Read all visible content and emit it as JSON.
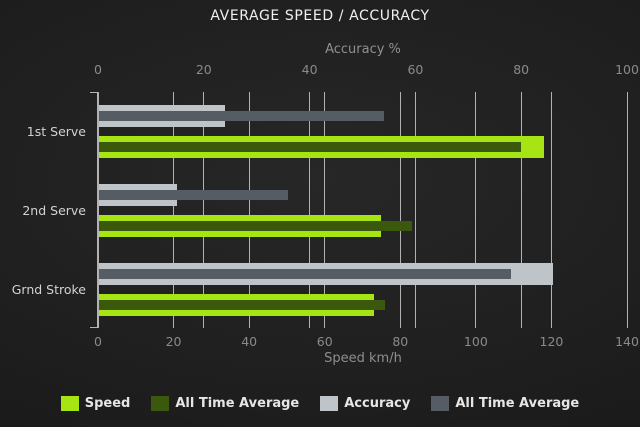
{
  "title": "AVERAGE SPEED / ACCURACY",
  "axes": {
    "top": {
      "label": "Accuracy %",
      "ticks": [
        "0",
        "20",
        "40",
        "60",
        "80",
        "100"
      ]
    },
    "bottom": {
      "label": "Speed km/h",
      "ticks": [
        "0",
        "20",
        "40",
        "60",
        "80",
        "100",
        "120",
        "140"
      ]
    }
  },
  "chart_data": {
    "type": "bar",
    "orientation": "horizontal",
    "title": "AVERAGE SPEED / ACCURACY",
    "categories": [
      "1st Serve",
      "2nd Serve",
      "Grnd Stroke"
    ],
    "top_axis": {
      "label": "Accuracy %",
      "range": [
        0,
        100
      ],
      "ticks": [
        0,
        20,
        40,
        60,
        80,
        100
      ]
    },
    "bottom_axis": {
      "label": "Speed km/h",
      "range": [
        0,
        140
      ],
      "ticks": [
        0,
        20,
        40,
        60,
        80,
        100,
        120,
        140
      ]
    },
    "grid": true,
    "legend_position": "bottom",
    "series": [
      {
        "name": "Speed",
        "axis": "bottom",
        "unit": "km/h",
        "color": "#a6e513",
        "values": [
          118,
          75,
          73
        ]
      },
      {
        "name": "All Time Average",
        "axis": "bottom",
        "unit": "km/h",
        "color": "#3b590c",
        "values": [
          112,
          83,
          76
        ]
      },
      {
        "name": "Accuracy",
        "axis": "top",
        "unit": "%",
        "color": "#bec4c8",
        "values": [
          24,
          15,
          86
        ]
      },
      {
        "name": "All Time Average",
        "axis": "top",
        "unit": "%",
        "color": "#565c64",
        "values": [
          54,
          36,
          78
        ]
      }
    ]
  },
  "legend": [
    {
      "label": "Speed",
      "color": "#a6e513"
    },
    {
      "label": "All Time Average",
      "color": "#3b590c"
    },
    {
      "label": "Accuracy",
      "color": "#bec4c8"
    },
    {
      "label": "All Time Average",
      "color": "#565c64"
    }
  ]
}
